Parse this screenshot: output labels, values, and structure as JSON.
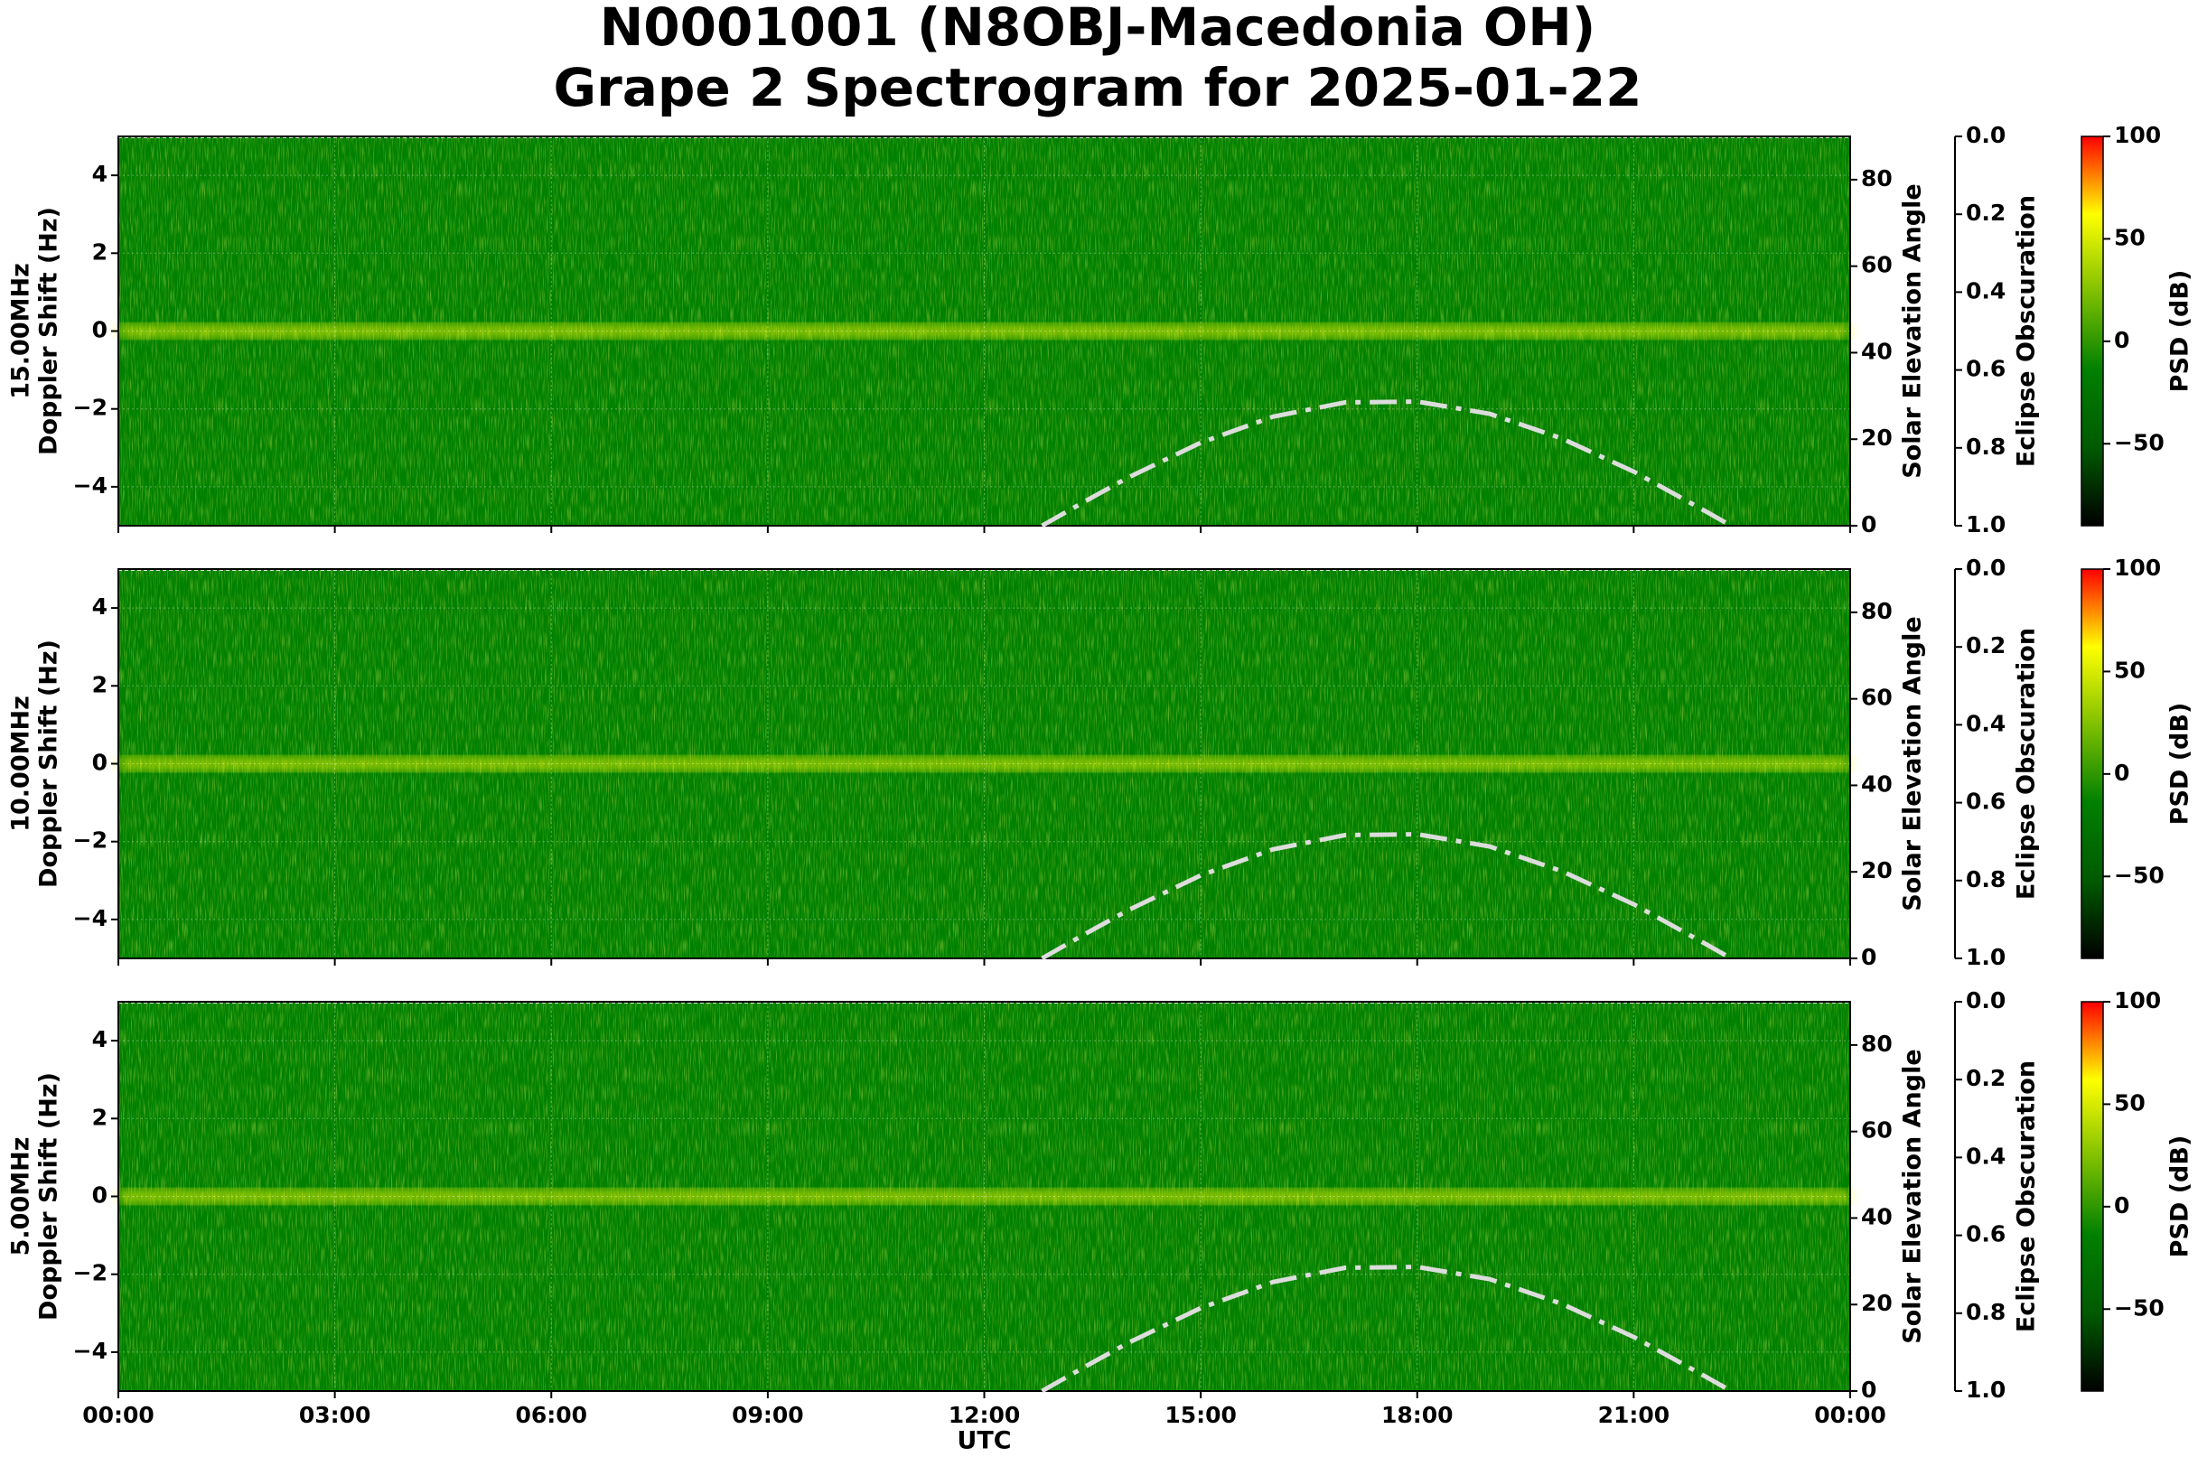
{
  "chart_data": [
    {
      "type": "spectrogram",
      "title": [
        "N0001001 (N8OBJ-Macedonia OH)",
        "Grape 2 Spectrogram for 2025-01-22"
      ],
      "frequency_label": "15.00MHz",
      "ylabel": "Doppler Shift (Hz)",
      "y2label": "Solar Elevation Angle",
      "y3label": "Eclipse Obscuration",
      "colorbar_label": "PSD (dB)",
      "xlim": [
        0,
        24
      ],
      "ylim": [
        -5,
        5
      ],
      "yticks": [
        {
          "value": -4,
          "label": "−4"
        },
        {
          "value": -2,
          "label": "−2"
        },
        0,
        2,
        4
      ],
      "y2lim": [
        0,
        90
      ],
      "y2ticks": [
        0,
        20,
        40,
        60,
        80
      ],
      "y3lim": [
        1,
        0
      ],
      "y3ticks": [
        {
          "value": 0,
          "label": "0.0"
        },
        0.2,
        0.4,
        0.6,
        0.8,
        {
          "value": 1,
          "label": "1.0"
        }
      ],
      "clim": [
        -90,
        100
      ],
      "cticks": [
        100,
        50,
        0,
        {
          "value": -50,
          "label": "−50"
        }
      ],
      "colormap": [
        "#000000",
        "#005a00",
        "#008000",
        "#7fc000",
        "#ffff00",
        "#ff0000"
      ],
      "x": [
        12.8,
        13.5,
        14,
        15,
        16,
        17,
        18,
        19,
        20,
        21,
        22,
        22.35
      ],
      "series": [
        {
          "color": "#dcdcdc",
          "axis": "y2",
          "values": [
            0,
            6.6,
            11.2,
            19.2,
            25.2,
            28.5,
            28.7,
            25.9,
            20.2,
            12.5,
            3.3,
            0
          ]
        }
      ],
      "grid": true
    },
    {
      "type": "spectrogram",
      "frequency_label": "10.00MHz",
      "ylabel": "Doppler Shift (Hz)",
      "y2label": "Solar Elevation Angle",
      "y3label": "Eclipse Obscuration",
      "colorbar_label": "PSD (dB)",
      "xlim": [
        0,
        24
      ],
      "ylim": [
        -5,
        5
      ],
      "yticks": [
        {
          "value": -4,
          "label": "−4"
        },
        {
          "value": -2,
          "label": "−2"
        },
        0,
        2,
        4
      ],
      "y2lim": [
        0,
        90
      ],
      "y2ticks": [
        0,
        20,
        40,
        60,
        80
      ],
      "y3lim": [
        1,
        0
      ],
      "y3ticks": [
        {
          "value": 0,
          "label": "0.0"
        },
        0.2,
        0.4,
        0.6,
        0.8,
        {
          "value": 1,
          "label": "1.0"
        }
      ],
      "clim": [
        -90,
        100
      ],
      "cticks": [
        100,
        50,
        0,
        {
          "value": -50,
          "label": "−50"
        }
      ],
      "colormap": [
        "#000000",
        "#005a00",
        "#008000",
        "#7fc000",
        "#ffff00",
        "#ff0000"
      ],
      "x": [
        12.8,
        13.5,
        14,
        15,
        16,
        17,
        18,
        19,
        20,
        21,
        22,
        22.35
      ],
      "series": [
        {
          "color": "#dcdcdc",
          "axis": "y2",
          "values": [
            0,
            6.6,
            11.2,
            19.2,
            25.2,
            28.5,
            28.7,
            25.9,
            20.2,
            12.5,
            3.3,
            0
          ]
        }
      ],
      "grid": true
    },
    {
      "type": "spectrogram",
      "frequency_label": "5.00MHz",
      "ylabel": "Doppler Shift (Hz)",
      "y2label": "Solar Elevation Angle",
      "y3label": "Eclipse Obscuration",
      "colorbar_label": "PSD (dB)",
      "xlabel": "UTC",
      "xlim": [
        0,
        24
      ],
      "xticks": [
        {
          "value": 0,
          "label": "00:00"
        },
        {
          "value": 3,
          "label": "03:00"
        },
        {
          "value": 6,
          "label": "06:00"
        },
        {
          "value": 9,
          "label": "09:00"
        },
        {
          "value": 12,
          "label": "12:00"
        },
        {
          "value": 15,
          "label": "15:00"
        },
        {
          "value": 18,
          "label": "18:00"
        },
        {
          "value": 21,
          "label": "21:00"
        },
        {
          "value": 24,
          "label": "00:00"
        }
      ],
      "ylim": [
        -5,
        5
      ],
      "yticks": [
        {
          "value": -4,
          "label": "−4"
        },
        {
          "value": -2,
          "label": "−2"
        },
        0,
        2,
        4
      ],
      "y2lim": [
        0,
        90
      ],
      "y2ticks": [
        0,
        20,
        40,
        60,
        80
      ],
      "y3lim": [
        1,
        0
      ],
      "y3ticks": [
        {
          "value": 0,
          "label": "0.0"
        },
        0.2,
        0.4,
        0.6,
        0.8,
        {
          "value": 1,
          "label": "1.0"
        }
      ],
      "clim": [
        -90,
        100
      ],
      "cticks": [
        100,
        50,
        0,
        {
          "value": -50,
          "label": "−50"
        }
      ],
      "colormap": [
        "#000000",
        "#005a00",
        "#008000",
        "#7fc000",
        "#ffff00",
        "#ff0000"
      ],
      "x": [
        12.8,
        13.5,
        14,
        15,
        16,
        17,
        18,
        19,
        20,
        21,
        22,
        22.35
      ],
      "series": [
        {
          "color": "#dcdcdc",
          "axis": "y2",
          "values": [
            0,
            6.6,
            11.2,
            19.2,
            25.2,
            28.5,
            28.7,
            25.9,
            20.2,
            12.5,
            3.3,
            0
          ]
        }
      ],
      "grid": true
    }
  ]
}
